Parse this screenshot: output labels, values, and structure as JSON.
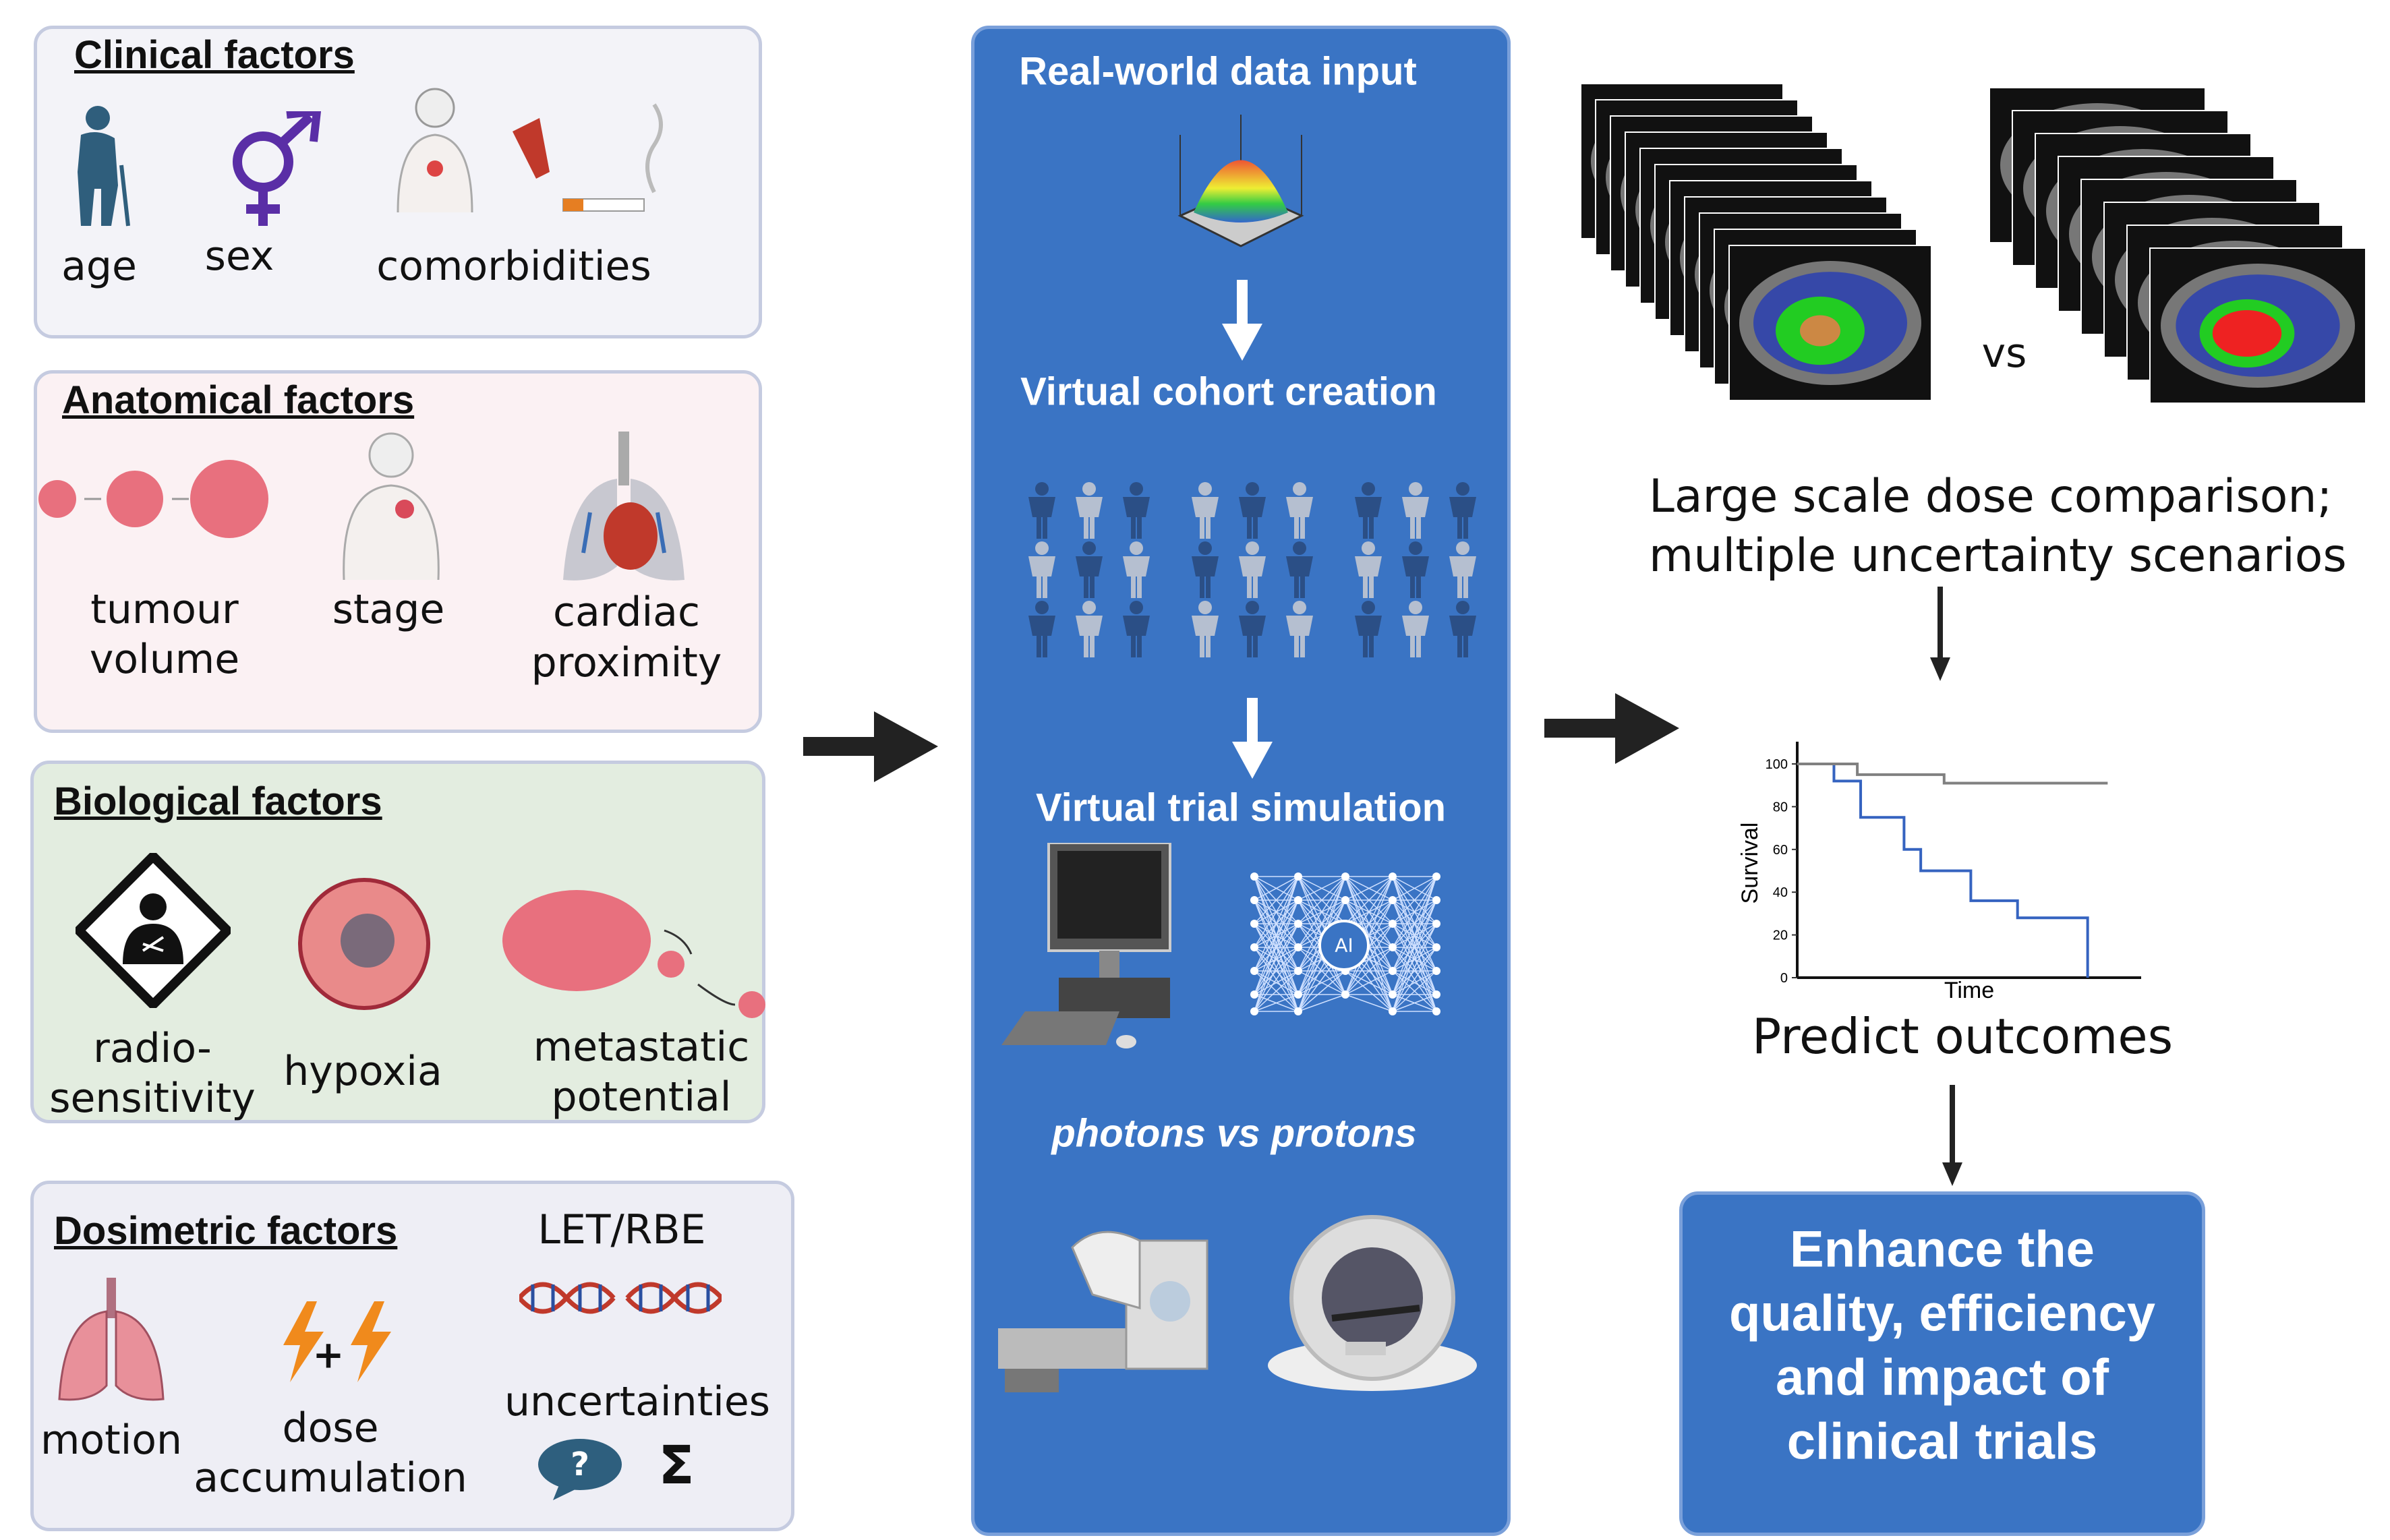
{
  "clinical": {
    "title": "Clinical factors",
    "items": [
      "age",
      "sex",
      "comorbidities"
    ]
  },
  "anatomical": {
    "title": "Anatomical factors",
    "items": [
      [
        "tumour",
        "volume"
      ],
      "stage",
      [
        "cardiac",
        "proximity"
      ]
    ]
  },
  "biological": {
    "title": "Biological factors",
    "items": [
      [
        "radio-",
        "sensitivity"
      ],
      "hypoxia",
      [
        "metastatic",
        "potential"
      ]
    ]
  },
  "dosimetric": {
    "title": "Dosimetric factors",
    "let_rbe": "LET/RBE",
    "items": [
      "motion",
      [
        "dose",
        "accumulation"
      ],
      "uncertainties"
    ],
    "plus": "+",
    "question": "?",
    "sigma": "Σ"
  },
  "pipeline": {
    "step1": "Real-world data input",
    "step2": "Virtual cohort creation",
    "step3": "Virtual trial simulation",
    "ai_label": "AI",
    "comparison": "photons vs protons"
  },
  "right": {
    "vs": "vs",
    "dose_text": [
      "Large scale dose comparison;",
      "multiple uncertainty scenarios"
    ],
    "predict": "Predict outcomes",
    "enhance": [
      "Enhance the",
      "quality, efficiency",
      "and impact of",
      "clinical trials"
    ]
  },
  "colors": {
    "panel": "#3a74c4",
    "anatomical_bg": "#fbf1f3",
    "biological_bg": "#e3ede0",
    "dosimetric_bg": "#eeeef5",
    "clinical_bg": "#f3f3f8",
    "km_blue": "#3563c0",
    "km_gray": "#808080"
  },
  "chart_data": {
    "type": "line",
    "xlabel": "Time",
    "ylabel": "Survival",
    "ylim": [
      0,
      100
    ],
    "xlim": [
      0,
      100
    ],
    "yticks": [
      0,
      20,
      40,
      60,
      80,
      100
    ],
    "grid": false,
    "series": [
      {
        "color": "#3563c0",
        "step": true,
        "x": [
          0,
          11,
          19,
          32,
          37,
          52,
          66,
          87,
          87
        ],
        "y": [
          100,
          92,
          75,
          60,
          50,
          36,
          28,
          28,
          0
        ]
      },
      {
        "color": "#808080",
        "step": true,
        "x": [
          0,
          18,
          44,
          93
        ],
        "y": [
          100,
          95,
          91,
          91
        ]
      }
    ]
  }
}
